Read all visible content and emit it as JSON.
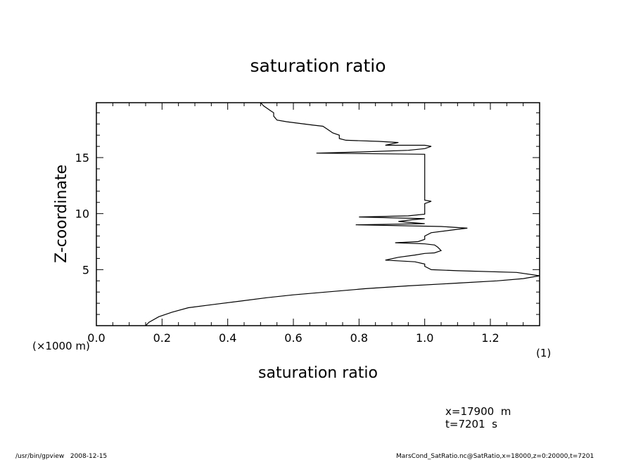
{
  "chart_data": {
    "type": "line",
    "title": "saturation ratio",
    "xlabel": "saturation ratio",
    "ylabel": "Z-coordinate",
    "x_unit_label": "(1)",
    "y_unit_label": "(×1000 m)",
    "xlim": [
      0.0,
      1.35
    ],
    "ylim": [
      0.0,
      19.9
    ],
    "x_ticks": [
      "0.0",
      "0.2",
      "0.4",
      "0.6",
      "0.8",
      "1.0",
      "1.2"
    ],
    "y_ticks": [
      "5",
      "10",
      "15"
    ],
    "grid": false,
    "series": [
      {
        "points": [
          [
            0.15,
            0.0
          ],
          [
            0.16,
            0.3
          ],
          [
            0.19,
            0.8
          ],
          [
            0.23,
            1.2
          ],
          [
            0.28,
            1.6
          ],
          [
            0.36,
            1.9
          ],
          [
            0.44,
            2.2
          ],
          [
            0.52,
            2.5
          ],
          [
            0.6,
            2.75
          ],
          [
            0.7,
            3.0
          ],
          [
            0.82,
            3.3
          ],
          [
            0.95,
            3.55
          ],
          [
            1.1,
            3.8
          ],
          [
            1.22,
            4.0
          ],
          [
            1.3,
            4.2
          ],
          [
            1.35,
            4.45
          ],
          [
            1.28,
            4.75
          ],
          [
            1.1,
            4.9
          ],
          [
            1.02,
            5.0
          ],
          [
            1.0,
            5.3
          ],
          [
            1.0,
            5.5
          ],
          [
            0.97,
            5.7
          ],
          [
            0.88,
            5.85
          ],
          [
            0.92,
            6.1
          ],
          [
            0.97,
            6.3
          ],
          [
            1.0,
            6.45
          ],
          [
            1.03,
            6.5
          ],
          [
            1.05,
            6.7
          ],
          [
            1.04,
            7.0
          ],
          [
            1.03,
            7.2
          ],
          [
            1.0,
            7.3
          ],
          [
            0.91,
            7.4
          ],
          [
            0.98,
            7.5
          ],
          [
            1.0,
            7.7
          ],
          [
            1.0,
            8.0
          ],
          [
            1.02,
            8.3
          ],
          [
            1.1,
            8.6
          ],
          [
            1.13,
            8.7
          ],
          [
            1.05,
            8.85
          ],
          [
            0.79,
            9.0
          ],
          [
            1.0,
            9.1
          ],
          [
            0.92,
            9.3
          ],
          [
            0.96,
            9.45
          ],
          [
            1.0,
            9.55
          ],
          [
            0.8,
            9.7
          ],
          [
            0.95,
            9.8
          ],
          [
            1.0,
            9.95
          ],
          [
            1.0,
            10.3
          ],
          [
            1.0,
            10.6
          ],
          [
            1.0,
            10.9
          ],
          [
            1.02,
            11.1
          ],
          [
            1.0,
            11.2
          ],
          [
            1.0,
            12.0
          ],
          [
            1.0,
            13.0
          ],
          [
            1.0,
            14.0
          ],
          [
            1.0,
            15.0
          ],
          [
            1.0,
            15.3
          ],
          [
            0.67,
            15.4
          ],
          [
            0.8,
            15.5
          ],
          [
            0.95,
            15.65
          ],
          [
            1.0,
            15.8
          ],
          [
            1.02,
            16.0
          ],
          [
            1.0,
            16.1
          ],
          [
            0.88,
            16.1
          ],
          [
            0.92,
            16.35
          ],
          [
            0.86,
            16.45
          ],
          [
            0.76,
            16.55
          ],
          [
            0.74,
            16.7
          ],
          [
            0.74,
            17.0
          ],
          [
            0.72,
            17.2
          ],
          [
            0.71,
            17.4
          ],
          [
            0.7,
            17.6
          ],
          [
            0.69,
            17.8
          ],
          [
            0.66,
            17.9
          ],
          [
            0.62,
            18.05
          ],
          [
            0.58,
            18.2
          ],
          [
            0.55,
            18.35
          ],
          [
            0.54,
            18.7
          ],
          [
            0.54,
            19.0
          ],
          [
            0.53,
            19.2
          ],
          [
            0.52,
            19.4
          ],
          [
            0.51,
            19.6
          ],
          [
            0.5,
            19.9
          ]
        ]
      }
    ]
  },
  "annotations": {
    "position": "x=17900  m",
    "time": "t=7201  s"
  },
  "footer": {
    "left": "/usr/bin/gpview   2008-12-15",
    "right": "MarsCond_SatRatio.nc@SatRatio,x=18000,z=0:20000,t=7201"
  }
}
